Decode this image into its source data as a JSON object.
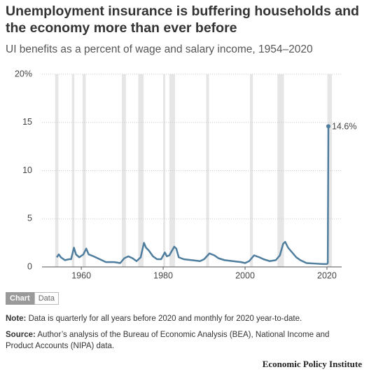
{
  "chart_data": {
    "type": "line",
    "title": "Unemployment insurance is buffering households and the economy more than ever before",
    "subtitle": "UI benefits as a percent of wage and salary income, 1954–2020",
    "x": [
      1954,
      1954.5,
      1955,
      1956,
      1957,
      1957.5,
      1958.2,
      1958.7,
      1959.5,
      1960.5,
      1961.2,
      1961.8,
      1963,
      1965,
      1966,
      1968,
      1969.5,
      1970.5,
      1971.5,
      1972.5,
      1973.5,
      1974.5,
      1975.3,
      1975.8,
      1976.5,
      1977.5,
      1978.5,
      1979.5,
      1980.4,
      1980.9,
      1981.5,
      1982.7,
      1983.2,
      1983.8,
      1985,
      1987,
      1989,
      1990,
      1991.3,
      1992.5,
      1993.5,
      1995,
      1997,
      1999,
      2000,
      2001,
      2002.2,
      2003.5,
      2004.5,
      2006,
      2007.5,
      2008.5,
      2009.3,
      2009.8,
      2010.5,
      2011.5,
      2012.5,
      2013.5,
      2015,
      2017,
      2019,
      2020.0,
      2020.2,
      2020.35
    ],
    "values": [
      1.0,
      1.3,
      1.0,
      0.7,
      0.8,
      0.8,
      2.0,
      1.3,
      1.0,
      1.3,
      1.9,
      1.3,
      1.1,
      0.7,
      0.5,
      0.5,
      0.4,
      0.9,
      1.1,
      0.9,
      0.6,
      1.0,
      2.5,
      2.0,
      1.7,
      1.1,
      0.8,
      0.8,
      1.5,
      1.1,
      1.2,
      2.1,
      1.9,
      1.0,
      0.8,
      0.7,
      0.6,
      0.8,
      1.4,
      1.2,
      0.9,
      0.7,
      0.6,
      0.5,
      0.4,
      0.6,
      1.2,
      1.0,
      0.8,
      0.6,
      0.7,
      1.2,
      2.4,
      2.6,
      2.0,
      1.5,
      1.0,
      0.7,
      0.4,
      0.35,
      0.3,
      0.3,
      0.4,
      14.6
    ],
    "value_labels": [
      null,
      null,
      null,
      null,
      null,
      null,
      null,
      null,
      null,
      null,
      null,
      null,
      null,
      null,
      null,
      null,
      null,
      null,
      null,
      null,
      null,
      null,
      null,
      null,
      null,
      null,
      null,
      null,
      null,
      null,
      null,
      null,
      null,
      null,
      null,
      null,
      null,
      null,
      null,
      null,
      null,
      null,
      null,
      null,
      null,
      null,
      null,
      null,
      null,
      null,
      null,
      null,
      null,
      null,
      null,
      null,
      null,
      null,
      null,
      null,
      null,
      null,
      null,
      "14.6%"
    ],
    "color": "#4e7d9e",
    "recessions": [
      [
        1953.6,
        1954.4
      ],
      [
        1957.7,
        1958.3
      ],
      [
        1960.3,
        1961.1
      ],
      [
        1969.9,
        1970.9
      ],
      [
        1973.9,
        1975.2
      ],
      [
        1980.0,
        1980.5
      ],
      [
        1981.5,
        1982.9
      ],
      [
        1990.5,
        1991.2
      ],
      [
        2001.2,
        2001.9
      ],
      [
        2007.9,
        2009.5
      ],
      [
        2020.1,
        2021.2
      ]
    ],
    "recession_color": "#e6e6e6",
    "xlim": [
      1950.4,
      2023.6
    ],
    "xticks": [
      1960,
      1980,
      2000,
      2020
    ],
    "ylim": [
      0,
      20
    ],
    "yticks": [
      0,
      5,
      10,
      15,
      {
        "value": 20,
        "label": "20%"
      }
    ],
    "grid": true
  },
  "tabs": [
    "Chart",
    "Data"
  ],
  "note": {
    "label": "Note:",
    "text": "Data is quarterly for all years before 2020 and monthly for 2020 year-to-date."
  },
  "source": {
    "label": "Source:",
    "text": "Author’s analysis of the Bureau of Economic Analysis (BEA), National Income and Product Accounts (NIPA) data."
  },
  "publisher": "Economic Policy Institute"
}
